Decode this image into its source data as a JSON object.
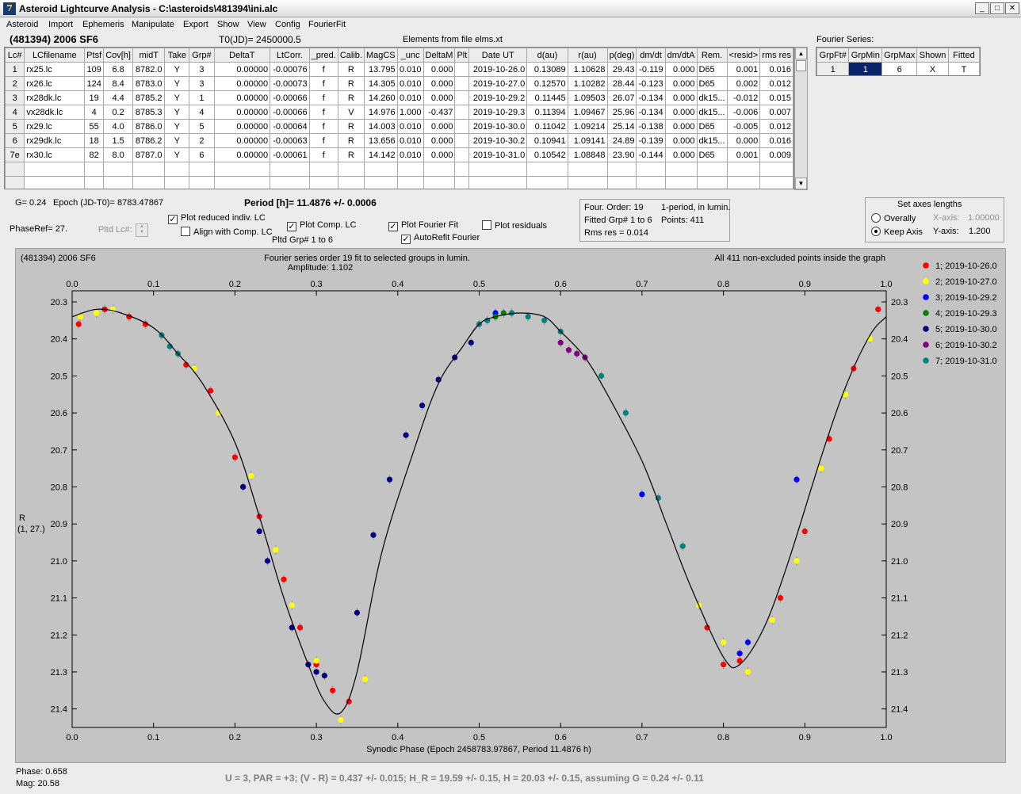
{
  "window": {
    "title": "Asteroid Lightcurve Analysis - C:\\asteroids\\481394\\ini.alc",
    "icon_letter": "7"
  },
  "menu": [
    "Asteroid",
    "Import",
    "Ephemeris",
    "Manipulate",
    "Export",
    "Show",
    "View",
    "Config",
    "FourierFit"
  ],
  "header": {
    "object": "(481394) 2006 SF6",
    "t0": "T0(JD)= 2450000.5",
    "elements": "Elements from file elms.xt",
    "fourier_series_label": "Fourier Series:"
  },
  "lc_table": {
    "columns": [
      "Lc#",
      "LCfilename",
      "Ptsf",
      "Cov[h]",
      "midT",
      "Take",
      "Grp#",
      "DeltaT",
      "LtCorr.",
      "_pred.",
      "Calib.",
      "MagCS",
      "_unc",
      "DeltaM",
      "Plt",
      "Date UT",
      "d(au)",
      "r(au)",
      "p(deg)",
      "dm/dt",
      "dm/dtA",
      "Rem.",
      "<resid>",
      "rms res"
    ],
    "rows": [
      [
        "1",
        "rx25.lc",
        "109",
        "6.8",
        "8782.0",
        "Y",
        "3",
        "0.00000",
        "-0.00076",
        "f",
        "R",
        "13.795",
        "0.010",
        "0.000",
        "",
        "2019-10-26.0",
        "0.13089",
        "1.10628",
        "29.43",
        "-0.119",
        "0.000",
        "D65",
        "0.001",
        "0.016"
      ],
      [
        "2",
        "rx26.lc",
        "124",
        "8.4",
        "8783.0",
        "Y",
        "3",
        "0.00000",
        "-0.00073",
        "f",
        "R",
        "14.305",
        "0.010",
        "0.000",
        "",
        "2019-10-27.0",
        "0.12570",
        "1.10282",
        "28.44",
        "-0.123",
        "0.000",
        "D65",
        "0.002",
        "0.012"
      ],
      [
        "3",
        "rx28dk.lc",
        "19",
        "4.4",
        "8785.2",
        "Y",
        "1",
        "0.00000",
        "-0.00066",
        "f",
        "R",
        "14.260",
        "0.010",
        "0.000",
        "",
        "2019-10-29.2",
        "0.11445",
        "1.09503",
        "26.07",
        "-0.134",
        "0.000",
        "dk15...",
        "-0.012",
        "0.015"
      ],
      [
        "4",
        "vx28dk.lc",
        "4",
        "0.2",
        "8785.3",
        "Y",
        "4",
        "0.00000",
        "-0.00066",
        "f",
        "V",
        "14.976",
        "1.000",
        "-0.437",
        "",
        "2019-10-29.3",
        "0.11394",
        "1.09467",
        "25.96",
        "-0.134",
        "0.000",
        "dk15...",
        "-0.006",
        "0.007"
      ],
      [
        "5",
        "rx29.lc",
        "55",
        "4.0",
        "8786.0",
        "Y",
        "5",
        "0.00000",
        "-0.00064",
        "f",
        "R",
        "14.003",
        "0.010",
        "0.000",
        "",
        "2019-10-30.0",
        "0.11042",
        "1.09214",
        "25.14",
        "-0.138",
        "0.000",
        "D65",
        "-0.005",
        "0.012"
      ],
      [
        "6",
        "rx29dk.lc",
        "18",
        "1.5",
        "8786.2",
        "Y",
        "2",
        "0.00000",
        "-0.00063",
        "f",
        "R",
        "13.656",
        "0.010",
        "0.000",
        "",
        "2019-10-30.2",
        "0.10941",
        "1.09141",
        "24.89",
        "-0.139",
        "0.000",
        "dk15...",
        "0.000",
        "0.016"
      ],
      [
        "7e",
        "rx30.lc",
        "82",
        "8.0",
        "8787.0",
        "Y",
        "6",
        "0.00000",
        "-0.00061",
        "f",
        "R",
        "14.142",
        "0.010",
        "0.000",
        "",
        "2019-10-31.0",
        "0.10542",
        "1.08848",
        "23.90",
        "-0.144",
        "0.000",
        "D65",
        "0.001",
        "0.009"
      ]
    ]
  },
  "fourier_table": {
    "columns": [
      "GrpFt#",
      "GrpMin",
      "GrpMax",
      "Shown",
      "Fitted"
    ],
    "rows": [
      [
        "1",
        "1",
        "6",
        "X",
        "T"
      ]
    ]
  },
  "info": {
    "g": "G= 0.24",
    "epoch": "Epoch (JD-T0)= 8783.47867",
    "period": "Period [h]= 11.4876 +/- 0.0006",
    "phase_ref": "PhaseRef= 27.",
    "pltd_lc": "Pltd Lc#:",
    "pltd_grp": "Pltd Grp#  1   to   6"
  },
  "checkboxes": {
    "plot_reduced": {
      "label": "Plot reduced indiv. LC",
      "checked": true
    },
    "align_comp": {
      "label": "Align with Comp. LC",
      "checked": false
    },
    "plot_comp": {
      "label": "Plot Comp. LC",
      "checked": true
    },
    "plot_fourier": {
      "label": "Plot Fourier Fit",
      "checked": true
    },
    "plot_residuals": {
      "label": "Plot residuals",
      "checked": false
    },
    "autorefit": {
      "label": "AutoRefit Fourier",
      "checked": true
    }
  },
  "fourier_info": {
    "order": "Four. Order: 19",
    "period_note": "1-period, in lumin.",
    "fitted": "Fitted Grp# 1 to 6",
    "points": "Points: 411",
    "rms": "Rms res     = 0.014"
  },
  "axes_panel": {
    "title": "Set axes lengths",
    "overally": "Overally",
    "keep_axis": "Keep Axis",
    "x_label": "X-axis:",
    "x_value": "1.00000",
    "y_label": "Y-axis:",
    "y_value": "1.200",
    "selected": "keep_axis"
  },
  "plot": {
    "object": "(481394) 2006 SF6",
    "title1": "Fourier series order 19 fit to selected groups in lumin.",
    "title2": "Amplitude: 1.102",
    "points_note": "All 411 non-excluded points inside the graph",
    "ylabel1": "R",
    "ylabel2": "(1, 27.)",
    "xlabel": "Synodic Phase (Epoch 2458783.97867, Period 11.4876 h)"
  },
  "chart_data": {
    "type": "scatter",
    "title": "Fourier series order 19 fit to selected groups in lumin.",
    "subtitle": "Amplitude: 1.102",
    "xlabel": "Synodic Phase (Epoch 2458783.97867, Period 11.4876 h)",
    "ylabel": "R",
    "xlim": [
      0.0,
      1.0
    ],
    "ylim": [
      21.45,
      20.27
    ],
    "y_inverted": true,
    "x_ticks": [
      "0.0",
      "0.1",
      "0.2",
      "0.3",
      "0.4",
      "0.5",
      "0.6",
      "0.7",
      "0.8",
      "0.9",
      "1.0"
    ],
    "y_ticks": [
      "20.3",
      "20.4",
      "20.5",
      "20.6",
      "20.7",
      "20.8",
      "20.9",
      "21.0",
      "21.1",
      "21.2",
      "21.3",
      "21.4"
    ],
    "legend_placement": "top-right",
    "fourier_fit": {
      "name": "Fourier Fit",
      "x": [
        0.0,
        0.03,
        0.06,
        0.1,
        0.13,
        0.16,
        0.2,
        0.23,
        0.26,
        0.29,
        0.31,
        0.33,
        0.35,
        0.38,
        0.42,
        0.45,
        0.48,
        0.5,
        0.52,
        0.55,
        0.58,
        0.6,
        0.63,
        0.66,
        0.7,
        0.73,
        0.76,
        0.8,
        0.82,
        0.85,
        0.88,
        0.92,
        0.95,
        0.98,
        1.0
      ],
      "y": [
        20.34,
        20.32,
        20.33,
        20.37,
        20.44,
        20.52,
        20.68,
        20.88,
        21.1,
        21.28,
        21.38,
        21.41,
        21.3,
        20.98,
        20.7,
        20.52,
        20.42,
        20.36,
        20.34,
        20.33,
        20.34,
        20.38,
        20.45,
        20.56,
        20.73,
        20.9,
        21.07,
        21.26,
        21.28,
        21.18,
        21.0,
        20.72,
        20.53,
        20.39,
        20.34
      ]
    },
    "series": [
      {
        "name": "1; 2019-10-26.0",
        "color": "#ff0000",
        "x": [
          0.008,
          0.04,
          0.07,
          0.09,
          0.14,
          0.17,
          0.2,
          0.21,
          0.23,
          0.26,
          0.28,
          0.3,
          0.32,
          0.34,
          0.78,
          0.8,
          0.82,
          0.87,
          0.9,
          0.93,
          0.96,
          0.99
        ],
        "y": [
          20.36,
          20.32,
          20.34,
          20.36,
          20.47,
          20.54,
          20.72,
          20.8,
          20.88,
          21.05,
          21.18,
          21.28,
          21.35,
          21.38,
          21.18,
          21.28,
          21.27,
          21.1,
          20.92,
          20.67,
          20.48,
          20.32
        ]
      },
      {
        "name": "2; 2019-10-27.0",
        "color": "#ffff00",
        "x": [
          0.01,
          0.03,
          0.05,
          0.15,
          0.18,
          0.22,
          0.25,
          0.27,
          0.3,
          0.33,
          0.36,
          0.77,
          0.8,
          0.83,
          0.86,
          0.89,
          0.92,
          0.95,
          0.98
        ],
        "y": [
          20.34,
          20.33,
          20.32,
          20.48,
          20.6,
          20.77,
          20.97,
          21.12,
          21.27,
          21.43,
          21.32,
          21.12,
          21.22,
          21.3,
          21.16,
          21.0,
          20.75,
          20.55,
          20.4
        ]
      },
      {
        "name": "3; 2019-10-29.2",
        "color": "#0000ff",
        "x": [
          0.52,
          0.7,
          0.82,
          0.83,
          0.89
        ],
        "y": [
          20.33,
          20.82,
          21.25,
          21.22,
          20.78
        ]
      },
      {
        "name": "4; 2019-10-29.3",
        "color": "#008000",
        "x": [
          0.52,
          0.53
        ],
        "y": [
          20.34,
          20.33
        ]
      },
      {
        "name": "5; 2019-10-30.0",
        "color": "#000080",
        "x": [
          0.21,
          0.23,
          0.24,
          0.27,
          0.29,
          0.3,
          0.31,
          0.35,
          0.37,
          0.39,
          0.41,
          0.43,
          0.45,
          0.47,
          0.49
        ],
        "y": [
          20.8,
          20.92,
          21.0,
          21.18,
          21.28,
          21.3,
          21.31,
          21.14,
          20.93,
          20.78,
          20.66,
          20.58,
          20.51,
          20.45,
          20.41
        ]
      },
      {
        "name": "6; 2019-10-30.2",
        "color": "#800080",
        "x": [
          0.61,
          0.62,
          0.63,
          0.6
        ],
        "y": [
          20.43,
          20.44,
          20.45,
          20.41
        ]
      },
      {
        "name": "7; 2019-10-31.0",
        "color": "#008080",
        "x": [
          0.11,
          0.12,
          0.13,
          0.5,
          0.51,
          0.54,
          0.56,
          0.58,
          0.6,
          0.65,
          0.68,
          0.72,
          0.75
        ],
        "y": [
          20.39,
          20.42,
          20.44,
          20.36,
          20.35,
          20.33,
          20.34,
          20.35,
          20.38,
          20.5,
          20.6,
          20.83,
          20.96
        ]
      }
    ]
  },
  "status": {
    "phase": "Phase:  0.658",
    "mag": "Mag:    20.58",
    "summary": "U = 3, PAR = +3; (V - R) = 0.437 +/- 0.015; H_R = 19.59 +/- 0.15, H = 20.03 +/- 0.15, assuming G = 0.24 +/- 0.11"
  }
}
